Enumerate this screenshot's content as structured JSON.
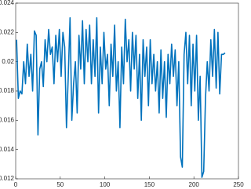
{
  "chart_data": {
    "type": "line",
    "x": [
      1,
      3,
      5,
      7,
      9,
      11,
      13,
      15,
      17,
      19,
      21,
      23,
      25,
      27,
      29,
      31,
      33,
      35,
      37,
      39,
      41,
      43,
      45,
      47,
      49,
      51,
      53,
      55,
      57,
      59,
      61,
      63,
      65,
      67,
      69,
      71,
      73,
      75,
      77,
      79,
      81,
      83,
      85,
      87,
      89,
      91,
      93,
      95,
      97,
      99,
      101,
      103,
      105,
      107,
      109,
      111,
      113,
      115,
      117,
      119,
      121,
      123,
      125,
      127,
      129,
      131,
      133,
      135,
      137,
      139,
      141,
      143,
      145,
      147,
      149,
      151,
      153,
      155,
      157,
      159,
      161,
      163,
      165,
      167,
      169,
      171,
      173,
      175,
      177,
      179,
      181,
      183,
      185,
      187,
      189,
      191,
      193,
      195,
      197,
      199,
      201,
      203,
      205,
      207,
      209,
      211,
      213,
      215,
      217,
      219,
      221,
      223,
      225,
      227,
      229,
      231,
      233,
      235
    ],
    "series": [
      {
        "color": "#0072bd",
        "values": [
          0.0215,
          0.0175,
          0.018,
          0.0178,
          0.02,
          0.0185,
          0.0212,
          0.019,
          0.0205,
          0.018,
          0.0221,
          0.0218,
          0.015,
          0.0195,
          0.02,
          0.0183,
          0.0215,
          0.02,
          0.0222,
          0.0205,
          0.021,
          0.0185,
          0.0218,
          0.02,
          0.0222,
          0.019,
          0.022,
          0.021,
          0.0155,
          0.019,
          0.023,
          0.016,
          0.0185,
          0.02,
          0.0165,
          0.0218,
          0.0195,
          0.0228,
          0.0185,
          0.0222,
          0.02,
          0.0225,
          0.0185,
          0.0215,
          0.019,
          0.023,
          0.0165,
          0.021,
          0.0185,
          0.022,
          0.0195,
          0.0205,
          0.017,
          0.0212,
          0.019,
          0.0225,
          0.018,
          0.02,
          0.0155,
          0.021,
          0.0185,
          0.0229,
          0.02,
          0.0215,
          0.018,
          0.022,
          0.0195,
          0.0218,
          0.0175,
          0.0205,
          0.016,
          0.0215,
          0.019,
          0.021,
          0.017,
          0.0215,
          0.0185,
          0.0205,
          0.018,
          0.02,
          0.0165,
          0.0208,
          0.0175,
          0.02,
          0.0162,
          0.0205,
          0.0185,
          0.0212,
          0.019,
          0.0208,
          0.017,
          0.02,
          0.0135,
          0.0128,
          0.0205,
          0.022,
          0.0185,
          0.0218,
          0.017,
          0.0212,
          0.018,
          0.0218,
          0.016,
          0.019,
          0.0121,
          0.0125,
          0.0175,
          0.02,
          0.018,
          0.0215,
          0.019,
          0.0222,
          0.0182,
          0.022,
          0.0178,
          0.0205,
          0.0205,
          0.0206
        ]
      }
    ],
    "xlim": [
      0,
      250
    ],
    "xticks": [
      0,
      50,
      100,
      150,
      200,
      250
    ],
    "ylim": [
      0.012,
      0.024
    ],
    "yticks": [
      0.012,
      0.014,
      0.016,
      0.018,
      0.02,
      0.022,
      0.024
    ],
    "grid": false
  }
}
